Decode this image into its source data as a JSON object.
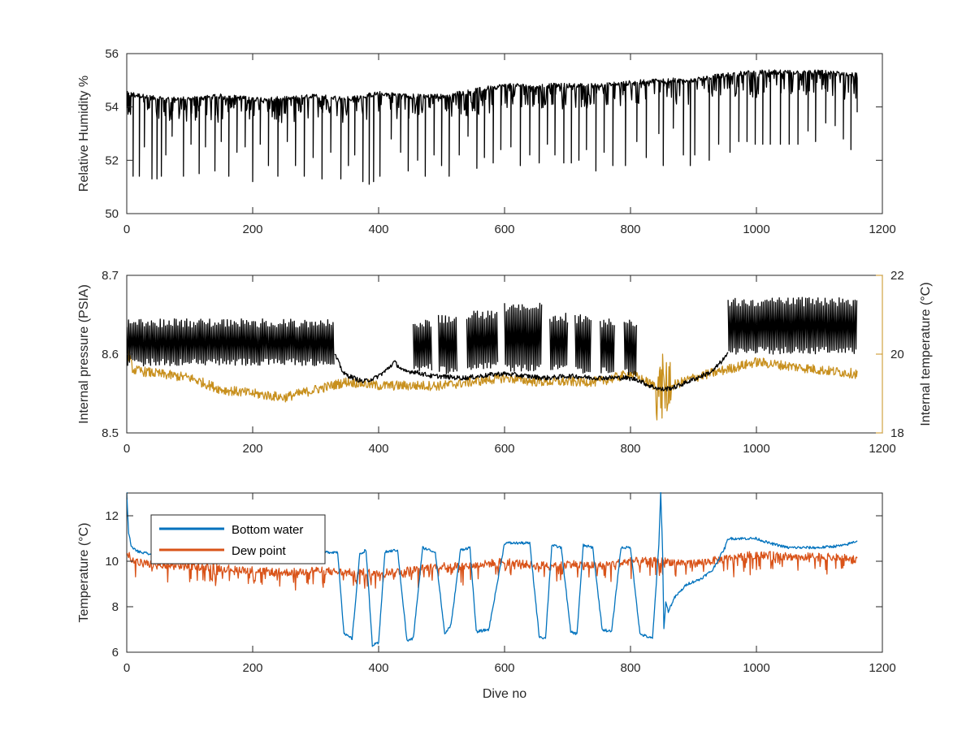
{
  "chart_data": [
    {
      "type": "line",
      "title": "",
      "xlabel": "",
      "ylabel": "Relative Humidity %",
      "xlim": [
        0,
        1200
      ],
      "ylim": [
        50,
        56
      ],
      "xticks": [
        0,
        200,
        400,
        600,
        800,
        1000,
        1200
      ],
      "yticks": [
        50,
        52,
        54,
        56
      ],
      "colors": {
        "relative_humidity": "#000000"
      },
      "series": [
        {
          "key": "relative_humidity",
          "x": [
            0,
            50,
            100,
            150,
            200,
            250,
            300,
            350,
            400,
            450,
            500,
            550,
            600,
            650,
            700,
            750,
            800,
            850,
            900,
            950,
            1000,
            1050,
            1100,
            1160
          ],
          "values": [
            54.5,
            54.3,
            54.3,
            54.4,
            54.3,
            54.3,
            54.4,
            54.3,
            54.5,
            54.4,
            54.4,
            54.6,
            54.8,
            54.8,
            54.8,
            54.8,
            54.9,
            55.0,
            55.0,
            55.2,
            55.3,
            55.3,
            55.3,
            55.2
          ],
          "dips": [
            [
              10,
              51.4
            ],
            [
              20,
              51.4
            ],
            [
              28,
              52.5
            ],
            [
              40,
              51.3
            ],
            [
              48,
              51.3
            ],
            [
              55,
              51.4
            ],
            [
              62,
              52.2
            ],
            [
              72,
              52.9
            ],
            [
              90,
              51.4
            ],
            [
              102,
              52.6
            ],
            [
              115,
              51.5
            ],
            [
              125,
              52.5
            ],
            [
              140,
              51.6
            ],
            [
              150,
              52.7
            ],
            [
              162,
              51.4
            ],
            [
              175,
              52.3
            ],
            [
              188,
              52.5
            ],
            [
              200,
              51.2
            ],
            [
              212,
              52.6
            ],
            [
              225,
              51.8
            ],
            [
              240,
              51.4
            ],
            [
              255,
              52.7
            ],
            [
              268,
              51.8
            ],
            [
              282,
              51.4
            ],
            [
              296,
              52.1
            ],
            [
              310,
              51.3
            ],
            [
              324,
              52.3
            ],
            [
              340,
              51.3
            ],
            [
              352,
              51.8
            ],
            [
              362,
              52.2
            ],
            [
              375,
              51.2
            ],
            [
              385,
              51.1
            ],
            [
              392,
              51.2
            ],
            [
              402,
              51.4
            ],
            [
              420,
              52.8
            ],
            [
              435,
              52.3
            ],
            [
              447,
              51.6
            ],
            [
              462,
              52.0
            ],
            [
              474,
              51.4
            ],
            [
              488,
              52.2
            ],
            [
              500,
              51.8
            ],
            [
              512,
              51.4
            ],
            [
              528,
              52.2
            ],
            [
              542,
              52.9
            ],
            [
              556,
              51.7
            ],
            [
              568,
              52.1
            ],
            [
              582,
              51.9
            ],
            [
              594,
              52.4
            ],
            [
              610,
              52.5
            ],
            [
              625,
              51.8
            ],
            [
              640,
              52.2
            ],
            [
              655,
              51.9
            ],
            [
              668,
              52.6
            ],
            [
              680,
              52.2
            ],
            [
              694,
              51.9
            ],
            [
              706,
              51.9
            ],
            [
              718,
              52.0
            ],
            [
              730,
              52.4
            ],
            [
              745,
              51.6
            ],
            [
              758,
              52.3
            ],
            [
              772,
              51.8
            ],
            [
              792,
              51.8
            ],
            [
              810,
              52.7
            ],
            [
              825,
              52.1
            ],
            [
              845,
              53.0
            ],
            [
              852,
              51.8
            ],
            [
              868,
              53.2
            ],
            [
              884,
              52.2
            ],
            [
              895,
              51.8
            ],
            [
              902,
              52.2
            ],
            [
              925,
              52.0
            ],
            [
              940,
              52.6
            ],
            [
              958,
              52.3
            ],
            [
              972,
              52.7
            ],
            [
              985,
              52.7
            ],
            [
              998,
              52.6
            ],
            [
              1010,
              52.6
            ],
            [
              1022,
              52.6
            ],
            [
              1038,
              52.6
            ],
            [
              1052,
              52.6
            ],
            [
              1066,
              52.6
            ],
            [
              1082,
              53.1
            ],
            [
              1094,
              52.7
            ],
            [
              1110,
              53.4
            ],
            [
              1125,
              53.3
            ],
            [
              1138,
              52.8
            ],
            [
              1150,
              52.4
            ]
          ]
        }
      ]
    },
    {
      "type": "line",
      "title": "",
      "xlabel": "",
      "ylabel": "Internal pressure (PSIA)",
      "ylabel_right": "Internal temperature (°C)",
      "xlim": [
        0,
        1200
      ],
      "ylim": [
        8.5,
        8.7
      ],
      "ylim_right": [
        18,
        22
      ],
      "xticks": [
        0,
        200,
        400,
        600,
        800,
        1000,
        1200
      ],
      "yticks": [
        8.5,
        8.6,
        8.7
      ],
      "yticks_right": [
        18,
        20,
        22
      ],
      "colors": {
        "internal_pressure": "#000000",
        "internal_temperature": "#C8901E"
      },
      "series": [
        {
          "key": "internal_pressure",
          "axis": "left",
          "segments": [
            {
              "x0": 0,
              "x1": 330,
              "low": 8.585,
              "high": 8.645
            },
            {
              "x0": 455,
              "x1": 485,
              "low": 8.578,
              "high": 8.645
            },
            {
              "x0": 495,
              "x1": 525,
              "low": 8.575,
              "high": 8.65
            },
            {
              "x0": 540,
              "x1": 590,
              "low": 8.58,
              "high": 8.655
            },
            {
              "x0": 600,
              "x1": 660,
              "low": 8.578,
              "high": 8.665
            },
            {
              "x0": 672,
              "x1": 700,
              "low": 8.578,
              "high": 8.652
            },
            {
              "x0": 712,
              "x1": 738,
              "low": 8.575,
              "high": 8.65
            },
            {
              "x0": 752,
              "x1": 775,
              "low": 8.575,
              "high": 8.645
            },
            {
              "x0": 790,
              "x1": 810,
              "low": 8.572,
              "high": 8.645
            },
            {
              "x0": 955,
              "x1": 1160,
              "low": 8.6,
              "high": 8.672
            }
          ],
          "baseline": {
            "x": [
              330,
              345,
              360,
              375,
              395,
              410,
              425,
              440,
              455,
              485,
              495,
              525,
              540,
              590,
              600,
              660,
              672,
              700,
              712,
              738,
              752,
              775,
              790,
              810,
              830,
              850,
              870,
              900,
              930,
              955
            ],
            "values": [
              8.6,
              8.575,
              8.57,
              8.565,
              8.57,
              8.578,
              8.59,
              8.578,
              8.578,
              8.572,
              8.572,
              8.57,
              8.57,
              8.575,
              8.575,
              8.57,
              8.57,
              8.572,
              8.572,
              8.57,
              8.57,
              8.57,
              8.57,
              8.568,
              8.56,
              8.555,
              8.558,
              8.568,
              8.578,
              8.6
            ]
          }
        },
        {
          "key": "internal_temperature",
          "axis": "right",
          "x": [
            0,
            10,
            50,
            100,
            150,
            200,
            250,
            300,
            350,
            400,
            450,
            500,
            550,
            600,
            650,
            700,
            750,
            800,
            850,
            900,
            950,
            1000,
            1050,
            1100,
            1160
          ],
          "values": [
            20.1,
            19.6,
            19.5,
            19.4,
            19.1,
            19.0,
            18.9,
            19.1,
            19.3,
            19.2,
            19.2,
            19.2,
            19.3,
            19.4,
            19.3,
            19.3,
            19.3,
            19.5,
            19.1,
            19.4,
            19.6,
            19.8,
            19.7,
            19.6,
            19.5
          ]
        }
      ]
    },
    {
      "type": "line",
      "title": "",
      "xlabel": "Dive no",
      "ylabel": "Temperature (°C)",
      "xlim": [
        0,
        1200
      ],
      "ylim": [
        6,
        13
      ],
      "xticks": [
        0,
        200,
        400,
        600,
        800,
        1000,
        1200
      ],
      "yticks": [
        6,
        8,
        10,
        12
      ],
      "legend": {
        "placement": "top-left",
        "entries": [
          "Bottom water",
          "Dew point"
        ]
      },
      "colors": {
        "bottom_water": "#0072BD",
        "dew_point": "#D95319"
      },
      "series": [
        {
          "key": "bottom_water",
          "name": "Bottom water",
          "x": [
            0,
            3,
            8,
            20,
            40,
            100,
            200,
            300,
            335,
            345,
            358,
            370,
            380,
            390,
            400,
            410,
            430,
            445,
            455,
            470,
            490,
            505,
            515,
            530,
            545,
            555,
            575,
            600,
            620,
            640,
            655,
            665,
            675,
            690,
            705,
            715,
            725,
            740,
            755,
            770,
            785,
            800,
            815,
            835,
            845,
            848,
            851,
            853,
            856,
            860,
            870,
            890,
            910,
            930,
            950,
            955,
            970,
            1000,
            1020,
            1050,
            1100,
            1140,
            1160
          ],
          "values": [
            13.0,
            11.2,
            10.6,
            10.4,
            10.3,
            10.4,
            10.4,
            10.4,
            10.4,
            6.8,
            6.6,
            10.3,
            10.5,
            6.3,
            6.4,
            10.4,
            10.5,
            6.5,
            6.6,
            10.6,
            10.4,
            6.8,
            7.2,
            10.5,
            10.6,
            6.9,
            7.0,
            10.8,
            10.8,
            10.8,
            6.7,
            6.6,
            10.7,
            10.6,
            6.9,
            6.8,
            10.7,
            10.6,
            7.0,
            6.9,
            10.6,
            10.6,
            6.8,
            6.6,
            10.7,
            13.0,
            10.4,
            7.0,
            8.2,
            7.8,
            8.4,
            9.0,
            9.2,
            9.6,
            10.6,
            11.0,
            11.0,
            11.0,
            10.8,
            10.6,
            10.6,
            10.7,
            10.9
          ]
        },
        {
          "key": "dew_point",
          "name": "Dew point",
          "x": [
            0,
            10,
            50,
            100,
            150,
            200,
            250,
            300,
            350,
            400,
            450,
            500,
            550,
            600,
            650,
            700,
            750,
            800,
            850,
            900,
            950,
            1000,
            1050,
            1100,
            1160
          ],
          "values": [
            10.5,
            10.0,
            9.8,
            9.8,
            9.7,
            9.6,
            9.5,
            9.6,
            9.5,
            9.5,
            9.6,
            9.8,
            9.8,
            10.0,
            9.8,
            9.9,
            9.8,
            10.0,
            10.0,
            9.9,
            10.1,
            10.3,
            10.2,
            10.2,
            10.1
          ]
        }
      ]
    }
  ]
}
